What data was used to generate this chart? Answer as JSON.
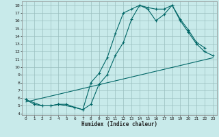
{
  "xlabel": "Humidex (Indice chaleur)",
  "ylabel": "",
  "bg_color": "#c8eaea",
  "grid_color": "#9bbfbf",
  "line_color": "#006666",
  "xlim": [
    -0.5,
    23.5
  ],
  "ylim": [
    3.8,
    18.5
  ],
  "xticks": [
    0,
    1,
    2,
    3,
    4,
    5,
    6,
    7,
    8,
    9,
    10,
    11,
    12,
    13,
    14,
    15,
    16,
    17,
    18,
    19,
    20,
    21,
    22,
    23
  ],
  "yticks": [
    4,
    5,
    6,
    7,
    8,
    9,
    10,
    11,
    12,
    13,
    14,
    15,
    16,
    17,
    18
  ],
  "line1_x": [
    0,
    1,
    2,
    3,
    4,
    5,
    6,
    7,
    8,
    9,
    10,
    11,
    12,
    13,
    14,
    15,
    16,
    17,
    18,
    19,
    20,
    21,
    22
  ],
  "line1_y": [
    5.8,
    5.2,
    5.0,
    5.0,
    5.2,
    5.2,
    4.8,
    4.5,
    8.0,
    9.2,
    11.2,
    14.3,
    17.0,
    17.5,
    18.0,
    17.7,
    17.5,
    17.5,
    18.0,
    16.2,
    14.8,
    13.2,
    12.5
  ],
  "line2_x": [
    0,
    2,
    3,
    4,
    6,
    7,
    8,
    9,
    10,
    11,
    12,
    13,
    14,
    15,
    16,
    17,
    18,
    19,
    20,
    21,
    22,
    23
  ],
  "line2_y": [
    5.8,
    5.0,
    5.0,
    5.2,
    4.8,
    4.5,
    5.2,
    7.8,
    9.0,
    11.5,
    13.2,
    16.2,
    18.0,
    17.5,
    16.0,
    16.8,
    18.0,
    16.0,
    14.5,
    13.0,
    12.0,
    11.5
  ],
  "line3_x": [
    0,
    23
  ],
  "line3_y": [
    5.5,
    11.2
  ]
}
